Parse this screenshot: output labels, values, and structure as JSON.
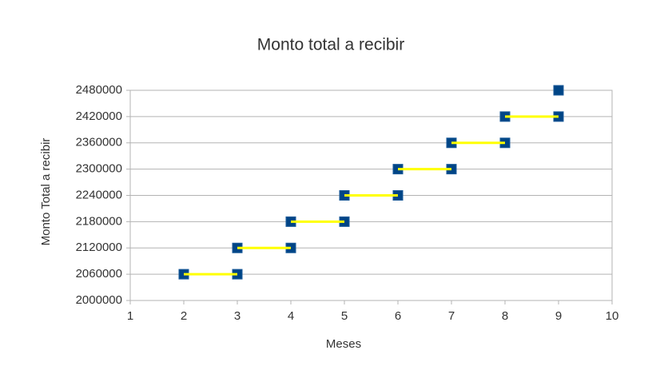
{
  "chart_data": {
    "type": "scatter",
    "title": "Monto total  a recibir",
    "x_label": "Meses",
    "y_label": "Monto Total  a recibir",
    "xlim": [
      1,
      10
    ],
    "xticks": [
      1,
      2,
      3,
      4,
      5,
      6,
      7,
      8,
      9,
      10
    ],
    "ylim": [
      2000000,
      2480000
    ],
    "yticks": [
      2000000,
      2060000,
      2120000,
      2180000,
      2240000,
      2300000,
      2360000,
      2420000,
      2480000
    ],
    "grid": true,
    "series": [
      {
        "color": "#004586",
        "line_color": "#ffff00",
        "x": [
          2,
          3,
          3,
          4,
          4,
          5,
          5,
          6,
          6,
          7,
          7,
          8,
          8,
          9,
          9
        ],
        "values": [
          2060000,
          2060000,
          2120000,
          2120000,
          2180000,
          2180000,
          2240000,
          2240000,
          2300000,
          2300000,
          2360000,
          2360000,
          2420000,
          2420000,
          2480000
        ]
      }
    ]
  }
}
